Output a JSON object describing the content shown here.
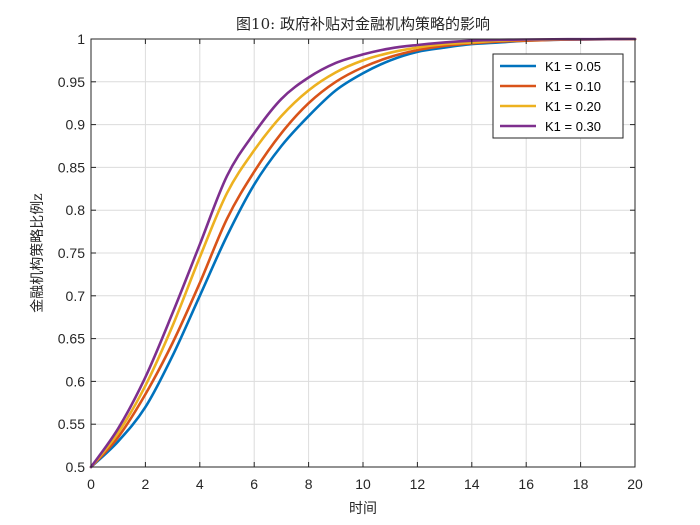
{
  "chart_data": {
    "type": "line",
    "title": "图10: 政府补贴对金融机构策略的影响",
    "xlabel": "时间",
    "ylabel": "金融机构策略比例z",
    "xlim": [
      0,
      20
    ],
    "ylim": [
      0.5,
      1
    ],
    "xticks": [
      0,
      2,
      4,
      6,
      8,
      10,
      12,
      14,
      16,
      18,
      20
    ],
    "yticks": [
      0.5,
      0.55,
      0.6,
      0.65,
      0.7,
      0.75,
      0.8,
      0.85,
      0.9,
      0.95,
      1
    ],
    "xtick_labels": [
      "0",
      "2",
      "4",
      "6",
      "8",
      "10",
      "12",
      "14",
      "16",
      "18",
      "20"
    ],
    "ytick_labels": [
      "0.5",
      "0.55",
      "0.6",
      "0.65",
      "0.7",
      "0.75",
      "0.8",
      "0.85",
      "0.9",
      "0.95",
      "1"
    ],
    "grid": true,
    "legend_position": "top-right",
    "x": [
      0,
      1,
      2,
      3,
      4,
      5,
      6,
      7,
      8,
      9,
      10,
      11,
      12,
      13,
      14,
      15,
      16,
      17,
      18,
      19,
      20
    ],
    "series": [
      {
        "name": "K1 = 0.05",
        "color": "#0072BD",
        "values": [
          0.5,
          0.53,
          0.57,
          0.63,
          0.7,
          0.77,
          0.83,
          0.875,
          0.91,
          0.94,
          0.96,
          0.975,
          0.985,
          0.99,
          0.994,
          0.996,
          0.998,
          0.999,
          0.9995,
          0.9997,
          0.9998
        ]
      },
      {
        "name": "K1 = 0.10",
        "color": "#D95319",
        "values": [
          0.5,
          0.535,
          0.585,
          0.645,
          0.715,
          0.79,
          0.845,
          0.89,
          0.925,
          0.95,
          0.967,
          0.979,
          0.987,
          0.992,
          0.995,
          0.997,
          0.998,
          0.999,
          0.9995,
          0.9997,
          0.9998
        ]
      },
      {
        "name": "K1 = 0.20",
        "color": "#EDB120",
        "values": [
          0.5,
          0.54,
          0.595,
          0.665,
          0.745,
          0.82,
          0.87,
          0.91,
          0.94,
          0.961,
          0.975,
          0.984,
          0.99,
          0.994,
          0.996,
          0.998,
          0.999,
          0.9993,
          0.9996,
          0.9998,
          0.9999
        ]
      },
      {
        "name": "K1 = 0.30",
        "color": "#7E2F8E",
        "values": [
          0.5,
          0.545,
          0.605,
          0.68,
          0.76,
          0.84,
          0.89,
          0.93,
          0.955,
          0.972,
          0.982,
          0.989,
          0.993,
          0.996,
          0.998,
          0.999,
          0.9994,
          0.9997,
          0.9998,
          0.9999,
          1.0
        ]
      }
    ]
  }
}
